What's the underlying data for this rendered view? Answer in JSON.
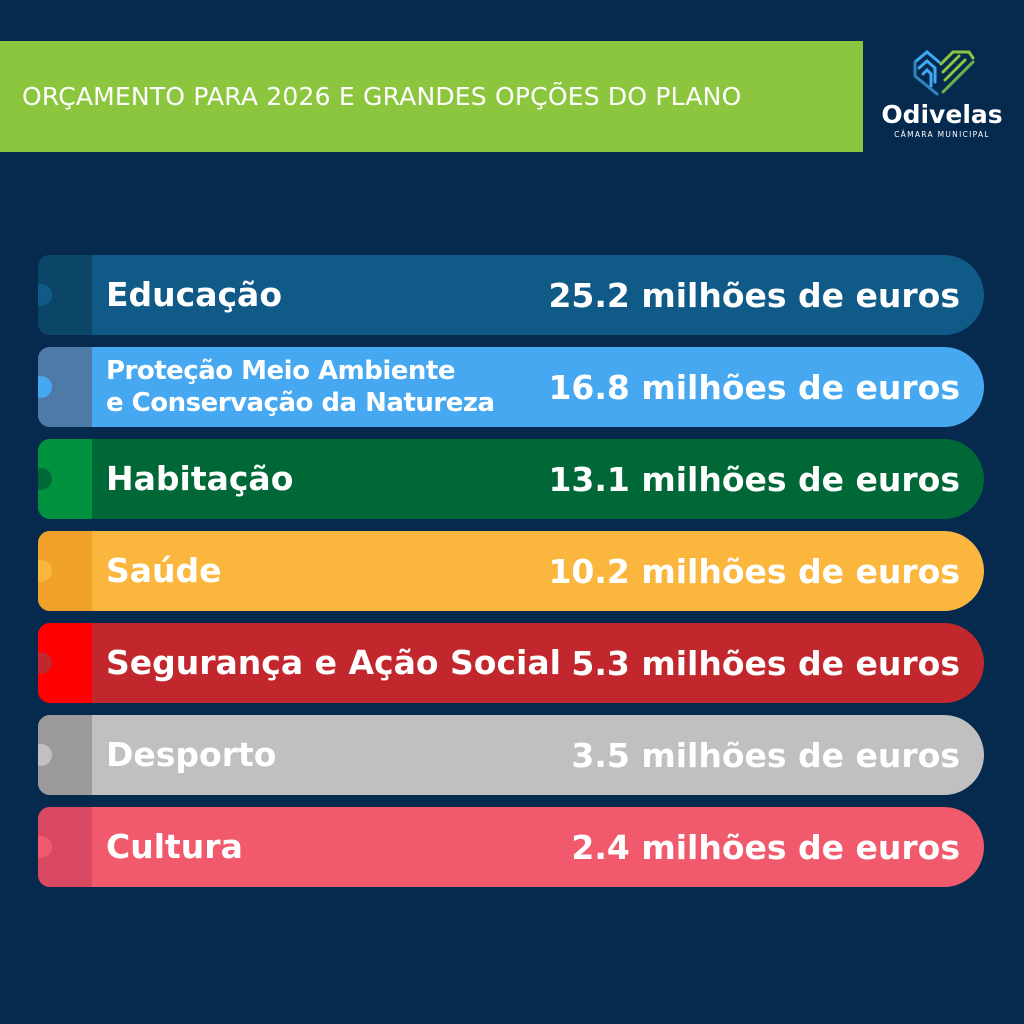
{
  "header": {
    "title": "ORÇAMENTO PARA 2026 E GRANDES OPÇÕES DO PLANO",
    "bg_color": "#8cc63f"
  },
  "logo": {
    "name": "Odivelas",
    "subtitle": "CÂMARA MUNICIPAL",
    "icon": "heart-stripes-logo"
  },
  "background_color": "#052a4e",
  "items": [
    {
      "label": "Educação",
      "value": "25.2 milhões de euros",
      "color": "#0f5a87",
      "tab_color": "#0b4568",
      "dot_color": "#0f5a87"
    },
    {
      "label_line1": "Proteção Meio Ambiente",
      "label_line2": "e Conservação da Natureza",
      "value": "16.8 milhões de euros",
      "color": "#45a8f0",
      "tab_color": "#4d7aa6",
      "dot_color": "#45a8f0"
    },
    {
      "label": "Habitação",
      "value": "13.1 milhões de euros",
      "color": "#006837",
      "tab_color": "#00923f",
      "dot_color": "#006837"
    },
    {
      "label": "Saúde",
      "value": "10.2 milhões de euros",
      "color": "#fbb63e",
      "tab_color": "#f0a12a",
      "dot_color": "#fbb63e"
    },
    {
      "label": "Segurança e Ação Social",
      "value": "5.3 milhões de euros",
      "color": "#c1272d",
      "tab_color": "#ff0000",
      "dot_color": "#c1272d"
    },
    {
      "label": "Desporto",
      "value": "3.5 milhões de euros",
      "color": "#c0c0c0",
      "tab_color": "#9a9a9a",
      "dot_color": "#c0c0c0"
    },
    {
      "label": "Cultura",
      "value": "2.4 milhões de euros",
      "color": "#f15a6d",
      "tab_color": "#d94a62",
      "dot_color": "#f15a6d"
    }
  ]
}
